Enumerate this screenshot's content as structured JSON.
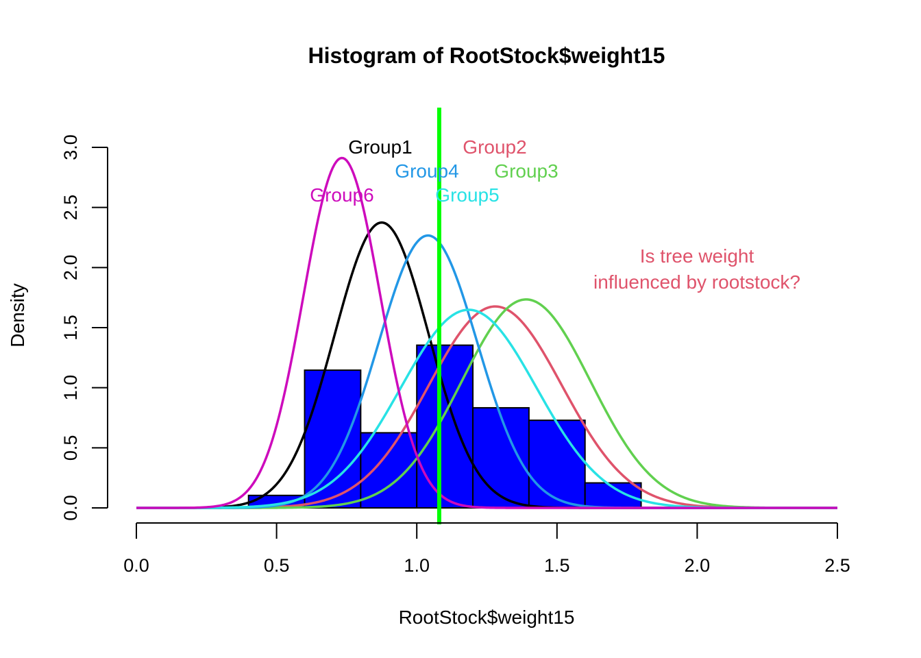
{
  "chart_data": {
    "type": "histogram",
    "title": "Histogram of RootStock$weight15",
    "xlabel": "RootStock$weight15",
    "ylabel": "Density",
    "xlim": [
      0,
      2.5
    ],
    "ylim": [
      0,
      3.0
    ],
    "x_ticks": [
      "0.0",
      "0.5",
      "1.0",
      "1.5",
      "2.0",
      "2.5"
    ],
    "y_ticks": [
      "0.0",
      "0.5",
      "1.0",
      "1.5",
      "2.0",
      "2.5",
      "3.0"
    ],
    "bins": [
      {
        "start": 0.4,
        "end": 0.6,
        "density": 0.104
      },
      {
        "start": 0.6,
        "end": 0.8,
        "density": 1.146
      },
      {
        "start": 0.8,
        "end": 1.0,
        "density": 0.625
      },
      {
        "start": 1.0,
        "end": 1.2,
        "density": 1.354
      },
      {
        "start": 1.2,
        "end": 1.4,
        "density": 0.833
      },
      {
        "start": 1.4,
        "end": 1.6,
        "density": 0.729
      },
      {
        "start": 1.6,
        "end": 1.8,
        "density": 0.208
      }
    ],
    "bar_color": "#0000FF",
    "vertical_line": {
      "x": 1.08,
      "color": "#00FF00"
    },
    "curves": [
      {
        "name": "Group1",
        "mean": 0.875,
        "sd": 0.168,
        "color": "#000000"
      },
      {
        "name": "Group2",
        "mean": 1.28,
        "sd": 0.238,
        "color": "#DF536B"
      },
      {
        "name": "Group3",
        "mean": 1.39,
        "sd": 0.23,
        "color": "#61D04F"
      },
      {
        "name": "Group4",
        "mean": 1.04,
        "sd": 0.176,
        "color": "#2297E6"
      },
      {
        "name": "Group5",
        "mean": 1.185,
        "sd": 0.242,
        "color": "#28E2E5"
      },
      {
        "name": "Group6",
        "mean": 0.733,
        "sd": 0.137,
        "color": "#CD0BBC"
      }
    ],
    "annotation": {
      "lines": [
        "Is tree weight",
        "influenced by rootstock?"
      ],
      "color": "#DF536B"
    }
  }
}
